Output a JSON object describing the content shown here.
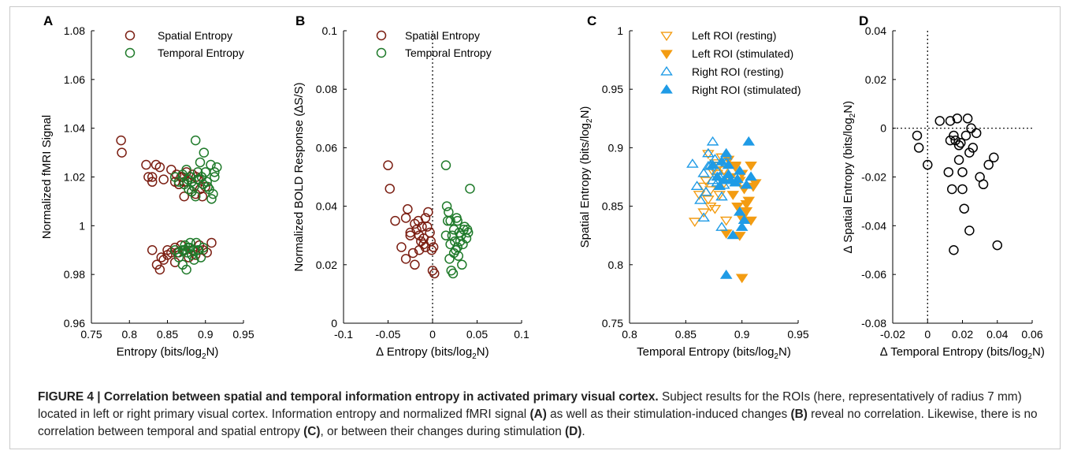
{
  "caption": {
    "label": "FIGURE 4 | Correlation between spatial and temporal information entropy in activated primary visual cortex.",
    "text_1": " Subject results for the ROIs (here, representatively of radius 7 mm) located in left or right primary visual cortex. Information entropy and normalized fMRI signal ",
    "ref_a": "(A)",
    "text_2": " as well as their stimulation-induced changes ",
    "ref_b": "(B)",
    "text_3": " reveal no correlation. Likewise, there is no correlation between temporal and spatial entropy ",
    "ref_c": "(C)",
    "text_4": ", or between their changes during stimulation ",
    "ref_d": "(D)",
    "text_5": "."
  },
  "colors": {
    "spatial": "#7b1e12",
    "temporal": "#1f7a2a",
    "left_roi": "#f39c12",
    "right_roi": "#1f9be6",
    "black": "#000000"
  },
  "chart_data": [
    {
      "panel": "A",
      "type": "scatter",
      "xlabel": "Entropy (bits/log",
      "xlabel_sub": "2",
      "xlabel_tail": "N)",
      "ylabel": "Normalized fMRI Signal",
      "xlim": [
        0.75,
        0.95
      ],
      "ylim": [
        0.96,
        1.08
      ],
      "xticks": [
        "0.75",
        "0.8",
        "0.85",
        "0.9",
        "0.95"
      ],
      "yticks": [
        "0.96",
        "0.98",
        "1",
        "1.02",
        "1.04",
        "1.06",
        "1.08"
      ],
      "xtick_values": [
        0.75,
        0.8,
        0.85,
        0.9,
        0.95
      ],
      "ytick_values": [
        0.96,
        0.98,
        1.0,
        1.02,
        1.04,
        1.06,
        1.08
      ],
      "legend_position": "top-center",
      "series": [
        {
          "name": "Spatial Entropy",
          "marker": "circle-open",
          "color": "#7b1e12",
          "x": [
            0.789,
            0.79,
            0.822,
            0.83,
            0.835,
            0.84,
            0.825,
            0.83,
            0.845,
            0.855,
            0.86,
            0.862,
            0.865,
            0.87,
            0.872,
            0.875,
            0.878,
            0.88,
            0.883,
            0.885,
            0.888,
            0.872,
            0.876,
            0.882,
            0.887,
            0.89,
            0.893,
            0.896,
            0.9,
            0.868,
            0.86,
            0.85,
            0.842,
            0.836,
            0.83,
            0.86,
            0.863,
            0.868,
            0.872,
            0.878,
            0.883,
            0.887,
            0.892,
            0.897,
            0.902,
            0.908,
            0.84,
            0.845,
            0.85,
            0.855
          ],
          "y": [
            1.035,
            1.03,
            1.025,
            1.02,
            1.025,
            1.024,
            1.02,
            1.018,
            1.019,
            1.023,
            1.018,
            1.021,
            1.017,
            1.02,
            1.018,
            1.022,
            1.015,
            1.02,
            1.021,
            1.016,
            1.02,
            1.012,
            1.018,
            1.014,
            1.013,
            1.019,
            1.015,
            1.012,
            1.016,
            1.02,
            0.991,
            0.99,
            0.987,
            0.984,
            0.99,
            0.985,
            0.989,
            0.992,
            0.99,
            0.987,
            0.99,
            0.988,
            0.992,
            0.99,
            0.989,
            0.993,
            0.982,
            0.986,
            0.988,
            0.989
          ]
        },
        {
          "name": "Temporal Entropy",
          "marker": "circle-open",
          "color": "#1f7a2a",
          "x": [
            0.86,
            0.865,
            0.87,
            0.872,
            0.875,
            0.878,
            0.88,
            0.882,
            0.885,
            0.887,
            0.89,
            0.892,
            0.895,
            0.897,
            0.9,
            0.902,
            0.905,
            0.907,
            0.91,
            0.912,
            0.915,
            0.887,
            0.893,
            0.898,
            0.903,
            0.908,
            0.912,
            0.882,
            0.877,
            0.895,
            0.86,
            0.865,
            0.87,
            0.873,
            0.876,
            0.879,
            0.882,
            0.885,
            0.888,
            0.891,
            0.894,
            0.897,
            0.87,
            0.875,
            0.88,
            0.885,
            0.89,
            0.865,
            0.873,
            0.877
          ],
          "y": [
            1.02,
            1.018,
            1.021,
            1.017,
            1.023,
            1.015,
            1.02,
            1.018,
            1.016,
            1.035,
            1.022,
            1.019,
            1.02,
            1.017,
            1.022,
            1.018,
            1.015,
            1.025,
            1.013,
            1.02,
            1.024,
            1.012,
            1.026,
            1.03,
            1.016,
            1.011,
            1.022,
            1.014,
            1.019,
            1.02,
            0.99,
            0.987,
            0.99,
            0.992,
            0.989,
            0.991,
            0.988,
            0.99,
            0.993,
            0.99,
            0.987,
            0.991,
            0.984,
            0.982,
            0.993,
            0.986,
            0.99,
            0.989,
            0.99,
            0.991
          ]
        }
      ]
    },
    {
      "panel": "B",
      "type": "scatter",
      "xlabel": "∆ Entropy (bits/log",
      "xlabel_sub": "2",
      "xlabel_tail": "N)",
      "ylabel": "Normalized BOLD Response (∆S/S)",
      "xlim": [
        -0.1,
        0.1
      ],
      "ylim": [
        0,
        0.1
      ],
      "xticks": [
        "-0.1",
        "-0.05",
        "0",
        "0.05",
        "0.1"
      ],
      "yticks": [
        "0",
        "0.02",
        "0.04",
        "0.06",
        "0.08",
        "0.1"
      ],
      "xtick_values": [
        -0.1,
        -0.05,
        0,
        0.05,
        0.1
      ],
      "ytick_values": [
        0,
        0.02,
        0.04,
        0.06,
        0.08,
        0.1
      ],
      "reference_lines": {
        "x": 0
      },
      "legend_position": "top-right",
      "series": [
        {
          "name": "Spatial Entropy",
          "marker": "circle-open",
          "color": "#7b1e12",
          "x": [
            -0.05,
            -0.048,
            -0.042,
            -0.035,
            -0.03,
            -0.028,
            -0.025,
            -0.022,
            -0.02,
            -0.018,
            -0.015,
            -0.013,
            -0.012,
            -0.01,
            -0.008,
            -0.005,
            -0.003,
            -0.001,
            0.0,
            0.002,
            -0.02,
            -0.025,
            -0.03,
            -0.016,
            -0.01,
            -0.006,
            -0.002,
            0.001,
            -0.015,
            -0.008
          ],
          "y": [
            0.054,
            0.046,
            0.035,
            0.026,
            0.036,
            0.039,
            0.031,
            0.024,
            0.02,
            0.032,
            0.03,
            0.028,
            0.033,
            0.027,
            0.026,
            0.038,
            0.031,
            0.025,
            0.018,
            0.017,
            0.034,
            0.03,
            0.022,
            0.035,
            0.029,
            0.033,
            0.028,
            0.026,
            0.025,
            0.036
          ]
        },
        {
          "name": "Temporal Entropy",
          "marker": "circle-open",
          "color": "#1f7a2a",
          "x": [
            0.015,
            0.016,
            0.018,
            0.02,
            0.022,
            0.024,
            0.025,
            0.027,
            0.028,
            0.03,
            0.032,
            0.034,
            0.035,
            0.038,
            0.04,
            0.042,
            0.017,
            0.019,
            0.021,
            0.023,
            0.026,
            0.029,
            0.031,
            0.033,
            0.036,
            0.015,
            0.02,
            0.024,
            0.028,
            0.039
          ],
          "y": [
            0.054,
            0.04,
            0.038,
            0.035,
            0.03,
            0.032,
            0.028,
            0.036,
            0.026,
            0.031,
            0.03,
            0.027,
            0.032,
            0.029,
            0.031,
            0.046,
            0.035,
            0.022,
            0.018,
            0.017,
            0.025,
            0.023,
            0.028,
            0.02,
            0.033,
            0.03,
            0.027,
            0.024,
            0.035,
            0.032
          ]
        }
      ]
    },
    {
      "panel": "C",
      "type": "scatter",
      "xlabel": "Temporal Entropy (bits/log",
      "xlabel_sub": "2",
      "xlabel_tail": "N)",
      "ylabel": "Spatial Entropy (bits/log",
      "ylabel_sub": "2",
      "ylabel_tail": "N)",
      "xlim": [
        0.8,
        0.95
      ],
      "ylim": [
        0.75,
        1
      ],
      "xticks": [
        "0.8",
        "0.85",
        "0.9",
        "0.95"
      ],
      "yticks": [
        "0.75",
        "0.8",
        "0.85",
        "0.9",
        "0.95",
        "1"
      ],
      "xtick_values": [
        0.8,
        0.85,
        0.9,
        0.95
      ],
      "ytick_values": [
        0.75,
        0.8,
        0.85,
        0.9,
        0.95,
        1
      ],
      "legend_position": "top-right",
      "series": [
        {
          "name": "Left ROI (resting)",
          "marker": "triangle-down-open",
          "color": "#f39c12",
          "x": [
            0.858,
            0.862,
            0.866,
            0.868,
            0.87,
            0.872,
            0.874,
            0.876,
            0.878,
            0.88,
            0.882,
            0.884,
            0.886,
            0.888,
            0.87,
            0.866,
            0.872,
            0.876,
            0.88,
            0.884
          ],
          "y": [
            0.837,
            0.86,
            0.845,
            0.872,
            0.895,
            0.864,
            0.88,
            0.848,
            0.878,
            0.885,
            0.892,
            0.87,
            0.838,
            0.875,
            0.856,
            0.867,
            0.85,
            0.887,
            0.86,
            0.881
          ]
        },
        {
          "name": "Left ROI (stimulated)",
          "marker": "triangle-down-filled",
          "color": "#f39c12",
          "x": [
            0.888,
            0.89,
            0.892,
            0.894,
            0.896,
            0.898,
            0.9,
            0.902,
            0.904,
            0.906,
            0.908,
            0.91,
            0.912,
            0.894,
            0.898,
            0.9,
            0.904,
            0.908,
            0.886,
            0.9
          ],
          "y": [
            0.89,
            0.875,
            0.86,
            0.884,
            0.85,
            0.872,
            0.878,
            0.865,
            0.846,
            0.855,
            0.838,
            0.867,
            0.87,
            0.885,
            0.825,
            0.84,
            0.852,
            0.885,
            0.827,
            0.789
          ]
        },
        {
          "name": "Right ROI (resting)",
          "marker": "triangle-up-open",
          "color": "#1f9be6",
          "x": [
            0.856,
            0.86,
            0.863,
            0.866,
            0.868,
            0.87,
            0.872,
            0.874,
            0.876,
            0.878,
            0.88,
            0.882,
            0.884,
            0.886,
            0.866,
            0.87,
            0.874,
            0.878,
            0.882,
            0.886
          ],
          "y": [
            0.886,
            0.867,
            0.855,
            0.878,
            0.862,
            0.895,
            0.885,
            0.905,
            0.89,
            0.87,
            0.875,
            0.832,
            0.868,
            0.893,
            0.84,
            0.884,
            0.872,
            0.88,
            0.858,
            0.887
          ]
        },
        {
          "name": "Right ROI (stimulated)",
          "marker": "triangle-up-filled",
          "color": "#1f9be6",
          "x": [
            0.874,
            0.878,
            0.882,
            0.886,
            0.888,
            0.89,
            0.892,
            0.894,
            0.896,
            0.898,
            0.9,
            0.902,
            0.904,
            0.906,
            0.908,
            0.88,
            0.884,
            0.888,
            0.898,
            0.886
          ],
          "y": [
            0.885,
            0.875,
            0.888,
            0.895,
            0.877,
            0.872,
            0.825,
            0.87,
            0.873,
            0.88,
            0.832,
            0.838,
            0.868,
            0.905,
            0.875,
            0.867,
            0.872,
            0.885,
            0.845,
            0.791
          ]
        }
      ]
    },
    {
      "panel": "D",
      "type": "scatter",
      "xlabel": "∆ Temporal Entropy (bits/log",
      "xlabel_sub": "2",
      "xlabel_tail": "N)",
      "ylabel": "∆ Spatial Entropy (bits/log",
      "ylabel_sub": "2",
      "ylabel_tail": "N)",
      "xlim": [
        -0.02,
        0.06
      ],
      "ylim": [
        -0.08,
        0.04
      ],
      "xticks": [
        "-0.02",
        "0",
        "0.02",
        "0.04",
        "0.06"
      ],
      "yticks": [
        "-0.08",
        "-0.06",
        "-0.04",
        "-0.02",
        "0",
        "0.02",
        "0.04"
      ],
      "xtick_values": [
        -0.02,
        0,
        0.02,
        0.04,
        0.06
      ],
      "ytick_values": [
        -0.08,
        -0.06,
        -0.04,
        -0.02,
        0,
        0.02,
        0.04
      ],
      "reference_lines": {
        "x": 0,
        "y": 0
      },
      "series": [
        {
          "name": "",
          "marker": "circle-open",
          "color": "#000000",
          "x": [
            -0.006,
            -0.005,
            0.0,
            0.007,
            0.012,
            0.013,
            0.014,
            0.015,
            0.016,
            0.017,
            0.018,
            0.019,
            0.02,
            0.021,
            0.022,
            0.023,
            0.024,
            0.025,
            0.026,
            0.028,
            0.03,
            0.032,
            0.035,
            0.038,
            0.04,
            0.013,
            0.015,
            0.02,
            0.024,
            0.018
          ],
          "y": [
            -0.003,
            -0.008,
            -0.015,
            0.003,
            -0.018,
            0.003,
            -0.025,
            -0.003,
            -0.005,
            0.004,
            -0.013,
            -0.006,
            -0.025,
            -0.033,
            -0.003,
            0.004,
            -0.042,
            0.0,
            -0.008,
            -0.002,
            -0.02,
            -0.023,
            -0.015,
            -0.012,
            -0.048,
            -0.005,
            -0.05,
            -0.018,
            -0.01,
            -0.007
          ]
        }
      ]
    }
  ],
  "panel_labels": [
    "A",
    "B",
    "C",
    "D"
  ],
  "legends": {
    "A": [
      "Spatial Entropy",
      "Temporal Entropy"
    ],
    "B": [
      "Spatial Entropy",
      "Temporal Entropy"
    ],
    "C": [
      "Left ROI (resting)",
      "Left ROI (stimulated)",
      "Right ROI (resting)",
      "Right ROI (stimulated)"
    ]
  }
}
